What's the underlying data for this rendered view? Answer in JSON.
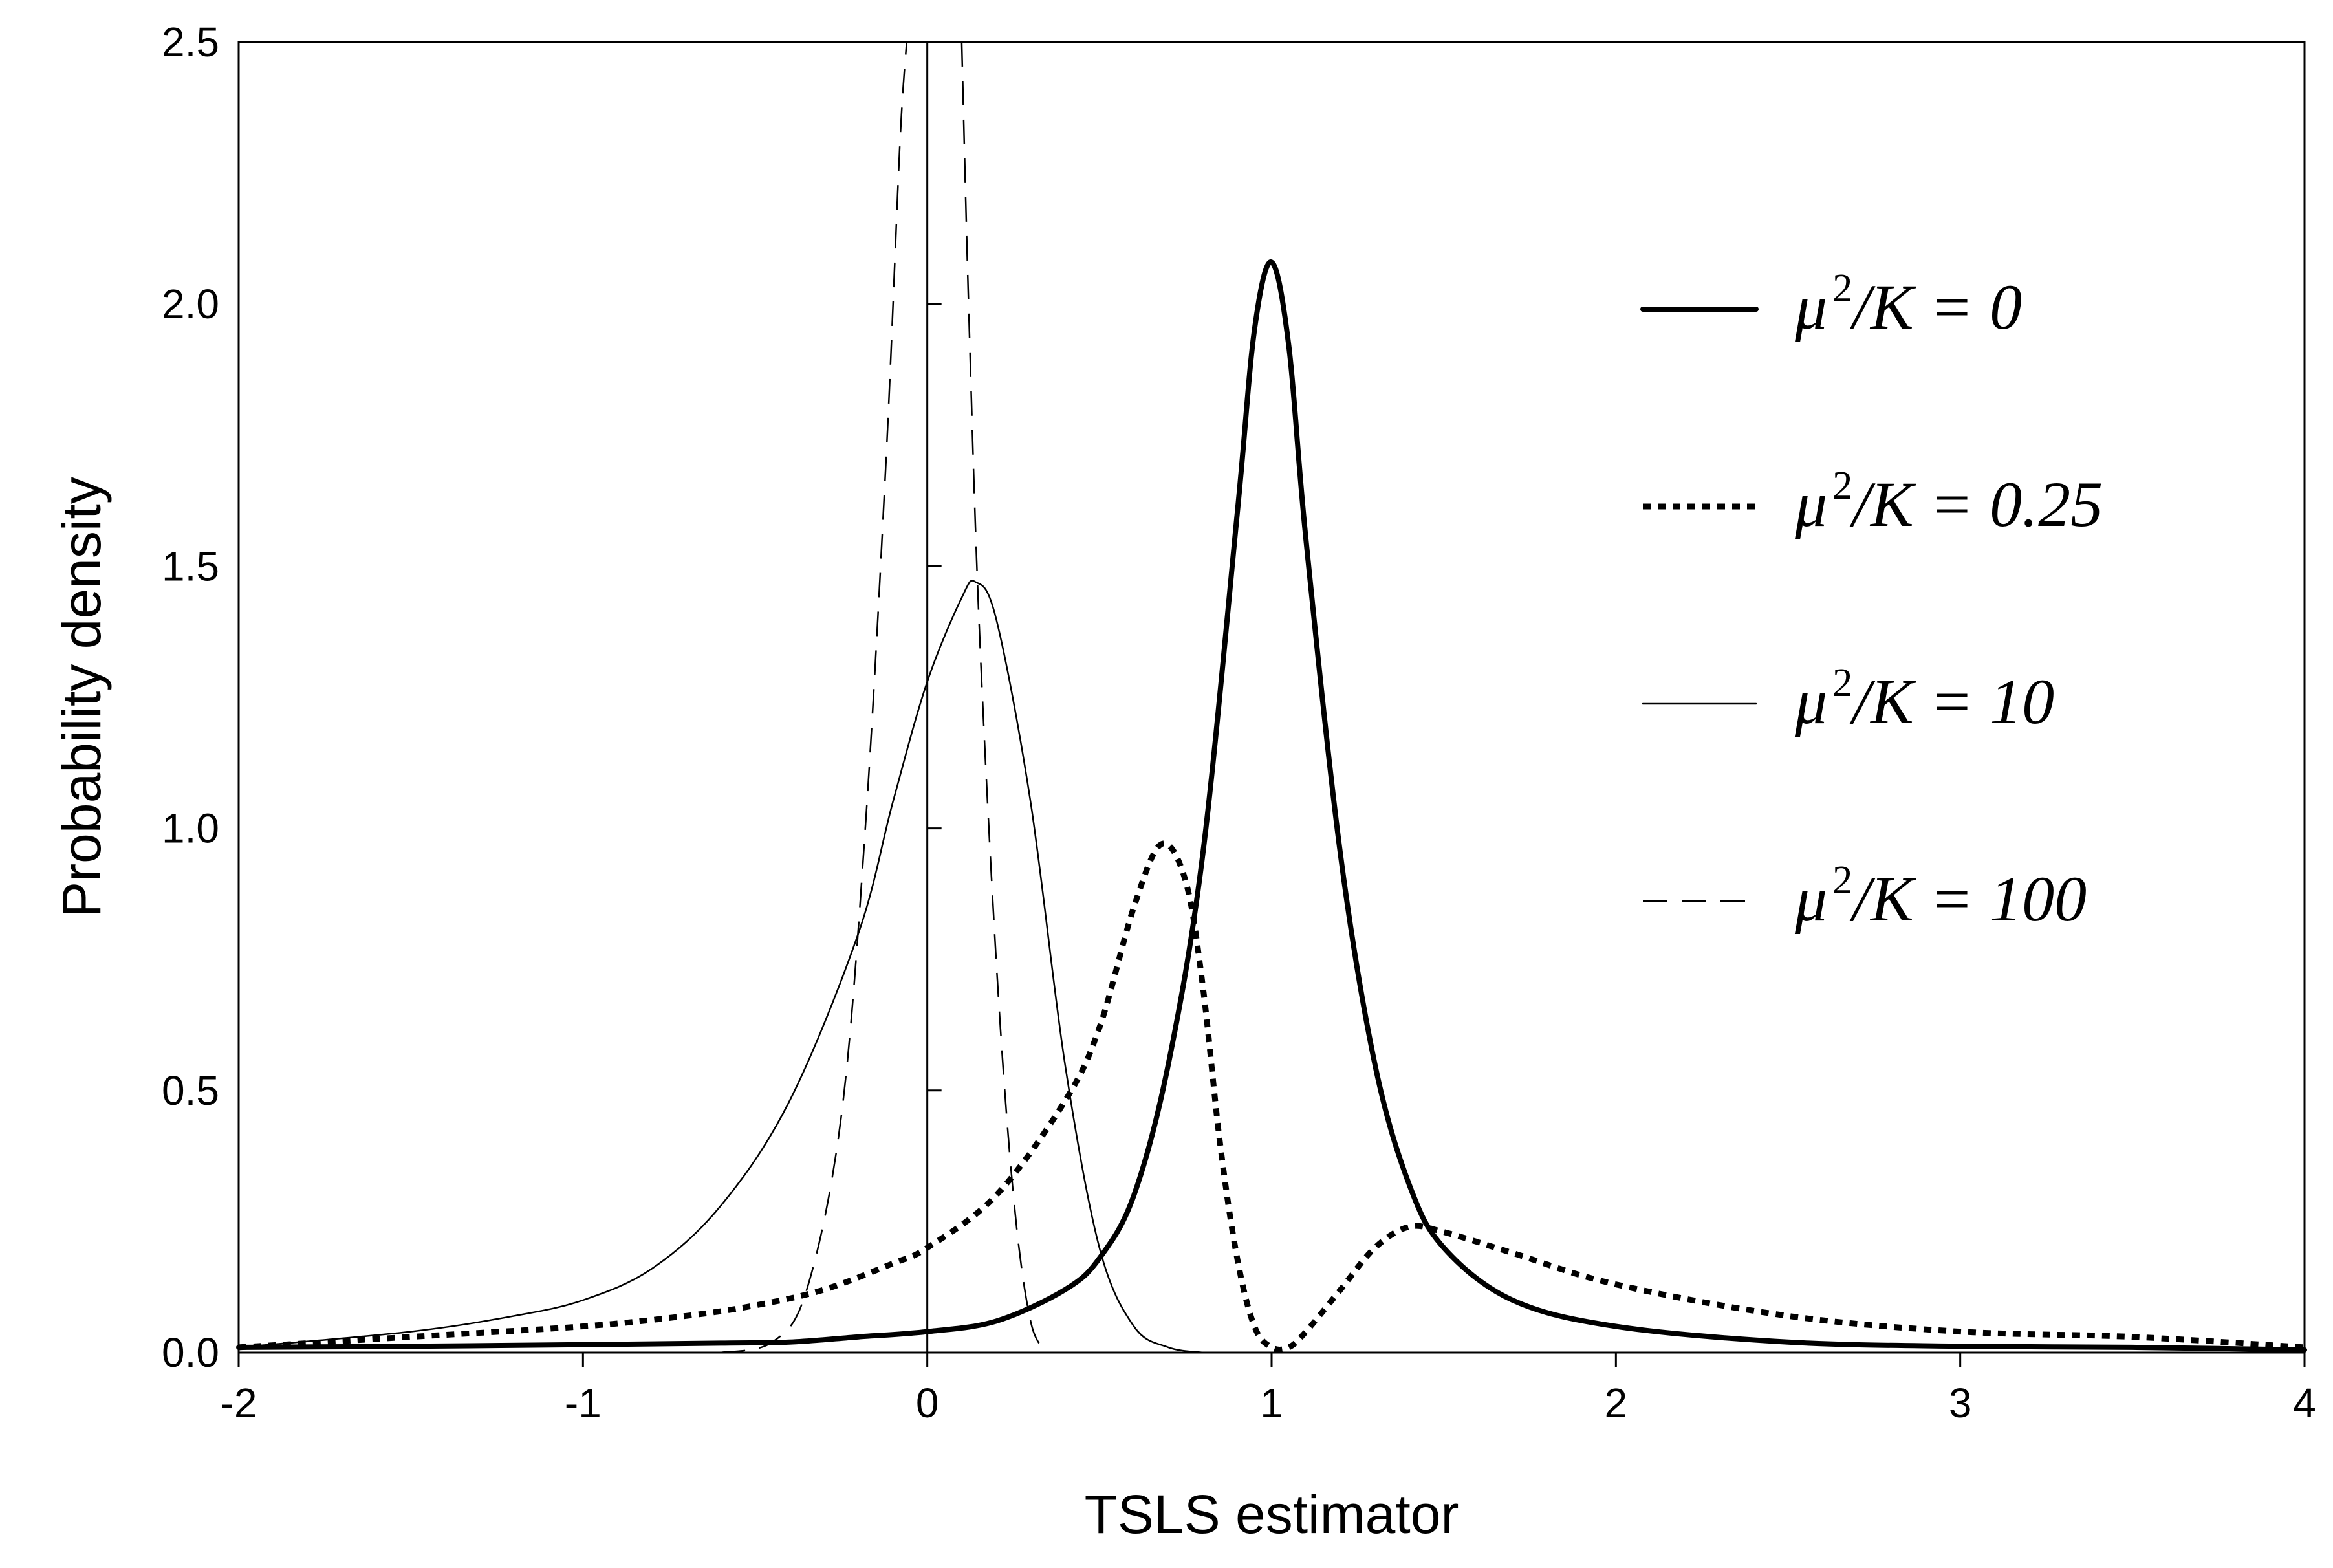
{
  "chart_data": {
    "type": "line",
    "title": "",
    "xlabel": "TSLS estimator",
    "ylabel": "Probability density",
    "xlim": [
      -2,
      4
    ],
    "ylim": [
      0,
      2.5
    ],
    "x_ticks": [
      -2,
      -1,
      0,
      1,
      2,
      3,
      4
    ],
    "x_tick_labels": [
      "-2",
      "-1",
      "0",
      "1",
      "2",
      "3",
      "4"
    ],
    "y_ticks": [
      0,
      0.5,
      1,
      1.5,
      2,
      2.5
    ],
    "y_tick_labels": [
      "0.0",
      "0.5",
      "1.0",
      "1.5",
      "2.0",
      "2.5"
    ],
    "grid": false,
    "reference_line_x": 0,
    "legend_position": "right",
    "series": [
      {
        "name": "μ²/K = 0",
        "name_parts": [
          "μ",
          "2",
          "/K = 0"
        ],
        "style": "thick-solid",
        "points": [
          [
            -2,
            0.01
          ],
          [
            -1.5,
            0.012
          ],
          [
            -1,
            0.015
          ],
          [
            -0.6,
            0.018
          ],
          [
            -0.4,
            0.02
          ],
          [
            -0.2,
            0.03
          ],
          [
            0,
            0.04
          ],
          [
            0.2,
            0.06
          ],
          [
            0.4,
            0.12
          ],
          [
            0.5,
            0.18
          ],
          [
            0.6,
            0.3
          ],
          [
            0.7,
            0.55
          ],
          [
            0.8,
            0.95
          ],
          [
            0.9,
            1.6
          ],
          [
            0.95,
            1.95
          ],
          [
            1.0,
            2.08
          ],
          [
            1.05,
            1.92
          ],
          [
            1.1,
            1.55
          ],
          [
            1.2,
            0.95
          ],
          [
            1.3,
            0.55
          ],
          [
            1.4,
            0.32
          ],
          [
            1.5,
            0.2
          ],
          [
            1.7,
            0.1
          ],
          [
            2.0,
            0.05
          ],
          [
            2.5,
            0.02
          ],
          [
            3,
            0.012
          ],
          [
            3.5,
            0.01
          ],
          [
            4,
            0.005
          ]
        ]
      },
      {
        "name": "μ²/K = 0.25",
        "name_parts": [
          "μ",
          "2",
          "/K = 0.25"
        ],
        "style": "thick-dotted",
        "points": [
          [
            -2,
            0.01
          ],
          [
            -1.5,
            0.03
          ],
          [
            -1,
            0.05
          ],
          [
            -0.7,
            0.07
          ],
          [
            -0.5,
            0.09
          ],
          [
            -0.3,
            0.12
          ],
          [
            -0.1,
            0.17
          ],
          [
            0,
            0.2
          ],
          [
            0.2,
            0.3
          ],
          [
            0.4,
            0.48
          ],
          [
            0.5,
            0.62
          ],
          [
            0.6,
            0.85
          ],
          [
            0.68,
            0.97
          ],
          [
            0.75,
            0.9
          ],
          [
            0.8,
            0.7
          ],
          [
            0.85,
            0.4
          ],
          [
            0.9,
            0.18
          ],
          [
            0.95,
            0.05
          ],
          [
            1.0,
            0.01
          ],
          [
            1.05,
            0.01
          ],
          [
            1.1,
            0.04
          ],
          [
            1.2,
            0.12
          ],
          [
            1.3,
            0.2
          ],
          [
            1.4,
            0.24
          ],
          [
            1.5,
            0.23
          ],
          [
            1.7,
            0.19
          ],
          [
            2.0,
            0.13
          ],
          [
            2.5,
            0.07
          ],
          [
            3.0,
            0.04
          ],
          [
            3.5,
            0.03
          ],
          [
            4,
            0.01
          ]
        ]
      },
      {
        "name": "μ²/K = 10",
        "name_parts": [
          "μ",
          "2",
          "/K = 10"
        ],
        "style": "thin-solid",
        "points": [
          [
            -2,
            0.01
          ],
          [
            -1.5,
            0.04
          ],
          [
            -1.2,
            0.07
          ],
          [
            -1.0,
            0.1
          ],
          [
            -0.8,
            0.16
          ],
          [
            -0.6,
            0.28
          ],
          [
            -0.4,
            0.48
          ],
          [
            -0.2,
            0.8
          ],
          [
            -0.1,
            1.05
          ],
          [
            0,
            1.28
          ],
          [
            0.1,
            1.44
          ],
          [
            0.14,
            1.47
          ],
          [
            0.2,
            1.4
          ],
          [
            0.3,
            1.05
          ],
          [
            0.4,
            0.55
          ],
          [
            0.5,
            0.2
          ],
          [
            0.6,
            0.05
          ],
          [
            0.7,
            0.01
          ],
          [
            0.8,
            0.0
          ]
        ]
      },
      {
        "name": "μ²/K = 100",
        "name_parts": [
          "μ",
          "2",
          "/K = 100"
        ],
        "style": "thin-dashed",
        "points": [
          [
            -0.6,
            0.0
          ],
          [
            -0.45,
            0.02
          ],
          [
            -0.35,
            0.12
          ],
          [
            -0.25,
            0.45
          ],
          [
            -0.18,
            1.0
          ],
          [
            -0.12,
            1.7
          ],
          [
            -0.08,
            2.3
          ],
          [
            -0.06,
            2.5
          ]
        ],
        "points_right": [
          [
            0.1,
            2.5
          ],
          [
            0.12,
            2.0
          ],
          [
            0.15,
            1.4
          ],
          [
            0.2,
            0.75
          ],
          [
            0.25,
            0.3
          ],
          [
            0.3,
            0.06
          ],
          [
            0.35,
            0.0
          ]
        ]
      }
    ]
  }
}
